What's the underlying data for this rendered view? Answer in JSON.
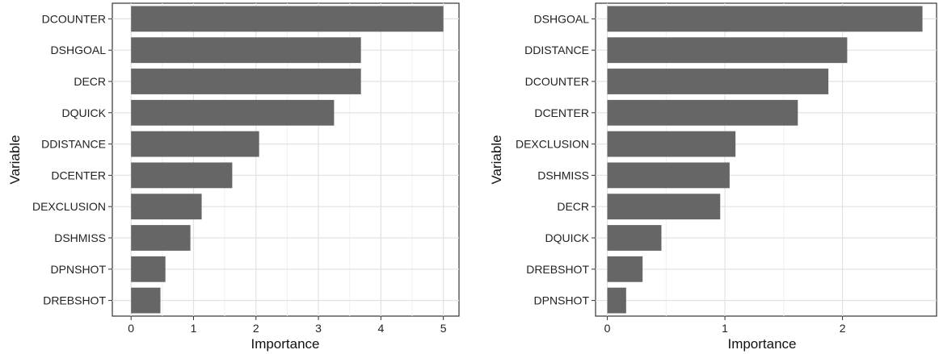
{
  "chart_data": [
    {
      "type": "bar",
      "orientation": "horizontal",
      "xlabel": "Importance",
      "ylabel": "Variable",
      "xlim": [
        -0.3,
        5.25
      ],
      "xticks": [
        0,
        1,
        2,
        3,
        4,
        5
      ],
      "grid": true,
      "bar_color": "#666666",
      "categories": [
        "DCOUNTER",
        "DSHGOAL",
        "DECR",
        "DQUICK",
        "DDISTANCE",
        "DCENTER",
        "DEXCLUSION",
        "DSHMISS",
        "DPNSHOT",
        "DREBSHOT"
      ],
      "values": [
        5.0,
        3.68,
        3.68,
        3.25,
        2.05,
        1.62,
        1.13,
        0.95,
        0.55,
        0.47
      ]
    },
    {
      "type": "bar",
      "orientation": "horizontal",
      "xlabel": "Importance",
      "ylabel": "Variable",
      "xlim": [
        -0.1,
        2.8
      ],
      "xticks": [
        0,
        1,
        2
      ],
      "grid": true,
      "bar_color": "#666666",
      "categories": [
        "DSHGOAL",
        "DDISTANCE",
        "DCOUNTER",
        "DCENTER",
        "DEXCLUSION",
        "DSHMISS",
        "DECR",
        "DQUICK",
        "DREBSHOT",
        "DPNSHOT"
      ],
      "values": [
        2.68,
        2.04,
        1.88,
        1.62,
        1.09,
        1.04,
        0.96,
        0.46,
        0.3,
        0.16
      ]
    }
  ]
}
